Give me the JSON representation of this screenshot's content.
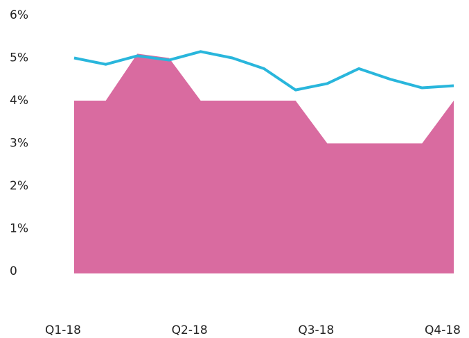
{
  "chart_data": {
    "type": "area",
    "categories": [
      "Q1-18",
      null,
      null,
      null,
      "Q2-18",
      null,
      null,
      null,
      "Q3-18",
      null,
      null,
      null,
      "Q4-18"
    ],
    "series": [
      {
        "kind": "area",
        "color": "#d96ba0",
        "values": [
          4,
          4,
          5.1,
          5.0,
          4,
          4,
          4,
          4,
          3,
          3,
          3,
          3,
          4
        ]
      },
      {
        "kind": "line",
        "color": "#29b6dc",
        "values": [
          5.0,
          4.85,
          5.05,
          4.95,
          5.15,
          5.0,
          4.75,
          4.25,
          4.4,
          4.75,
          4.5,
          4.3,
          4.35
        ]
      }
    ],
    "ylim": [
      0,
      6
    ],
    "yticks": [
      0,
      {
        "value": 1,
        "label": "1%"
      },
      {
        "value": 2,
        "label": "2%"
      },
      {
        "value": 3,
        "label": "3%"
      },
      {
        "value": 4,
        "label": "4%"
      },
      {
        "value": 5,
        "label": "5%"
      },
      {
        "value": 6,
        "label": "6%"
      }
    ],
    "grid": false
  }
}
